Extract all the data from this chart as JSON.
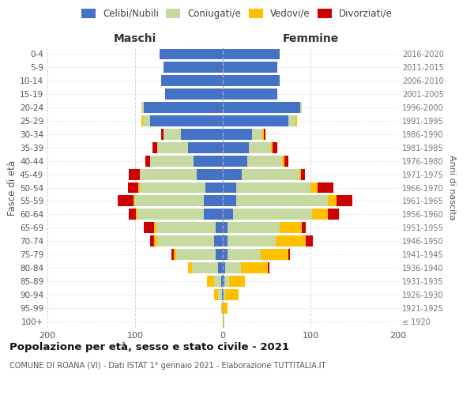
{
  "age_groups": [
    "100+",
    "95-99",
    "90-94",
    "85-89",
    "80-84",
    "75-79",
    "70-74",
    "65-69",
    "60-64",
    "55-59",
    "50-54",
    "45-49",
    "40-44",
    "35-39",
    "30-34",
    "25-29",
    "20-24",
    "15-19",
    "10-14",
    "5-9",
    "0-4"
  ],
  "birth_years": [
    "≤ 1920",
    "1921-1925",
    "1926-1930",
    "1931-1935",
    "1936-1940",
    "1941-1945",
    "1946-1950",
    "1951-1955",
    "1956-1960",
    "1961-1965",
    "1966-1970",
    "1971-1975",
    "1976-1980",
    "1981-1985",
    "1986-1990",
    "1991-1995",
    "1996-2000",
    "2001-2005",
    "2006-2010",
    "2011-2015",
    "2016-2020"
  ],
  "male_celibe": [
    0,
    0,
    1,
    2,
    5,
    8,
    10,
    8,
    22,
    22,
    20,
    30,
    33,
    40,
    48,
    83,
    90,
    66,
    70,
    68,
    72
  ],
  "male_coniugato": [
    0,
    0,
    4,
    8,
    30,
    45,
    65,
    68,
    75,
    78,
    75,
    65,
    50,
    35,
    20,
    8,
    3,
    0,
    0,
    0,
    0
  ],
  "male_vedovo": [
    0,
    2,
    5,
    8,
    5,
    3,
    3,
    2,
    2,
    2,
    1,
    0,
    0,
    0,
    0,
    2,
    0,
    0,
    0,
    0,
    0
  ],
  "male_divorziato": [
    0,
    0,
    0,
    0,
    0,
    3,
    5,
    12,
    8,
    18,
    12,
    12,
    5,
    5,
    2,
    0,
    0,
    0,
    0,
    0,
    0
  ],
  "female_celibe": [
    0,
    0,
    1,
    2,
    3,
    5,
    5,
    5,
    12,
    15,
    15,
    22,
    28,
    30,
    33,
    75,
    88,
    62,
    65,
    62,
    65
  ],
  "female_coniugata": [
    0,
    0,
    2,
    5,
    18,
    38,
    55,
    60,
    90,
    105,
    85,
    65,
    40,
    25,
    12,
    8,
    2,
    0,
    0,
    0,
    0
  ],
  "female_vedova": [
    2,
    5,
    15,
    18,
    30,
    32,
    35,
    25,
    18,
    10,
    8,
    2,
    2,
    2,
    2,
    2,
    0,
    0,
    0,
    0,
    0
  ],
  "female_divorziata": [
    0,
    0,
    0,
    0,
    2,
    2,
    8,
    5,
    12,
    18,
    18,
    5,
    5,
    5,
    2,
    0,
    0,
    0,
    0,
    0,
    0
  ],
  "colors": {
    "celibe": "#4472c4",
    "coniugato": "#c5d9a0",
    "vedovo": "#ffc000",
    "divorziato": "#cc0000"
  },
  "xlim": 200,
  "title": "Popolazione per età, sesso e stato civile - 2021",
  "subtitle": "COMUNE DI ROANA (VI) - Dati ISTAT 1° gennaio 2021 - Elaborazione TUTTITALIA.IT",
  "ylabel_left": "Fasce di età",
  "ylabel_right": "Anni di nascita",
  "xlabel_maschi": "Maschi",
  "xlabel_femmine": "Femmine",
  "bg_color": "#ffffff",
  "grid_color": "#cccccc",
  "legend_labels": [
    "Celibi/Nubili",
    "Coniugati/e",
    "Vedovi/e",
    "Divorziati/e"
  ]
}
